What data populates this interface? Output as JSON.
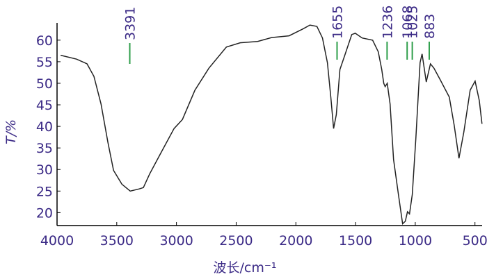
{
  "chart_data": {
    "type": "line",
    "x_label": "波长/cm⁻¹",
    "y_label": "T/%",
    "xlim": [
      4000,
      440
    ],
    "ylim": [
      17,
      64
    ],
    "xticks": [
      4000,
      3500,
      3000,
      2500,
      2000,
      1500,
      1000,
      500
    ],
    "yticks": [
      20,
      25,
      30,
      35,
      40,
      45,
      50,
      55,
      60
    ],
    "peaks": [
      3391,
      1655,
      1236,
      1068,
      1025,
      883
    ],
    "peak_color": "#2e9e4a",
    "series": [
      {
        "color": "#222222",
        "x": [
          3970,
          3837,
          3749,
          3691,
          3632,
          3574,
          3527,
          3457,
          3387,
          3312,
          3277,
          3224,
          3137,
          3020,
          2950,
          2845,
          2728,
          2582,
          2466,
          2320,
          2203,
          2057,
          1941,
          1882,
          1824,
          1777,
          1736,
          1707,
          1684,
          1661,
          1631,
          1590,
          1532,
          1503,
          1445,
          1357,
          1310,
          1281,
          1264,
          1252,
          1235,
          1211,
          1182,
          1141,
          1106,
          1083,
          1065,
          1048,
          1025,
          995,
          960,
          943,
          908,
          873,
          844,
          791,
          715,
          674,
          634,
          593,
          540,
          499,
          464,
          441
        ],
        "values": [
          56.5,
          55.6,
          54.5,
          51.6,
          45.2,
          36.3,
          29.8,
          26.6,
          25,
          25.5,
          25.8,
          29,
          33.5,
          39.5,
          41.6,
          48.4,
          53.5,
          58.4,
          59.4,
          59.7,
          60.6,
          61,
          62.6,
          63.5,
          63.2,
          60.5,
          54.8,
          46.8,
          39.5,
          42.7,
          53.2,
          56.5,
          61.3,
          61.6,
          60.5,
          60,
          57.3,
          53.2,
          50,
          49.2,
          50,
          45.2,
          32.3,
          24.2,
          17.4,
          18,
          20.2,
          19.7,
          24.2,
          37.1,
          54.8,
          56.8,
          50.3,
          54.5,
          53.5,
          50.8,
          46.8,
          40.3,
          32.6,
          38.7,
          48.4,
          50.5,
          46,
          40.6
        ]
      }
    ]
  }
}
